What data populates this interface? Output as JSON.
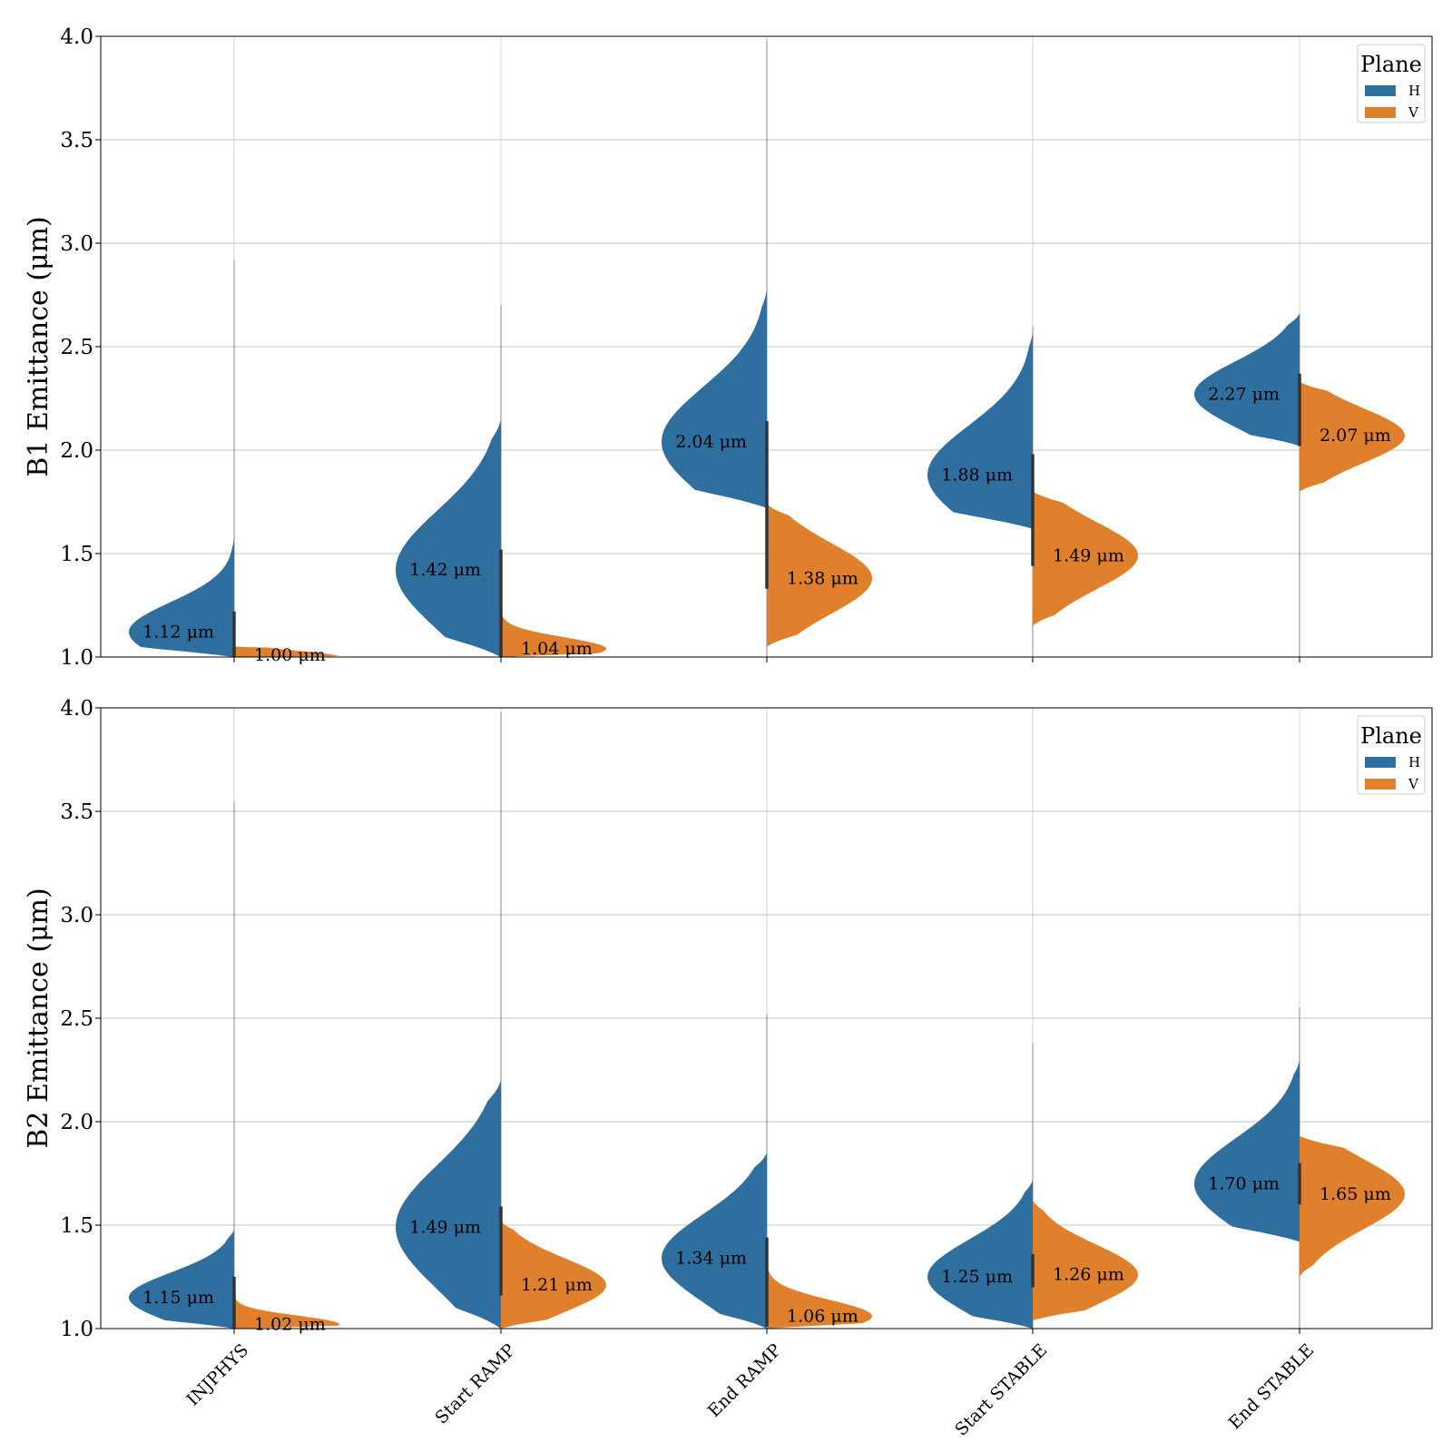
{
  "chart_data": [
    {
      "type": "violin",
      "ylabel": "B1 Emittance (μm)",
      "ylim": [
        1.0,
        4.0
      ],
      "yticks": [
        "1.0",
        "1.5",
        "2.0",
        "2.5",
        "3.0",
        "3.5",
        "4.0"
      ],
      "grid": true,
      "legend": {
        "title": "Plane",
        "placement": "top-right",
        "entries": [
          "H",
          "V"
        ]
      },
      "categories": [
        "INJPHYS",
        "Start RAMP",
        "End RAMP",
        "Start STABLE",
        "End STABLE"
      ],
      "series": [
        {
          "name": "H",
          "color": "#2f6f9f",
          "medians": [
            1.12,
            1.42,
            2.04,
            1.88,
            2.27
          ],
          "labels": [
            "1.12 μm",
            "1.42 μm",
            "2.04 μm",
            "1.88 μm",
            "2.27 μm"
          ],
          "ranges": [
            [
              1.0,
              1.58
            ],
            [
              1.0,
              2.15
            ],
            [
              1.72,
              2.78
            ],
            [
              1.62,
              2.58
            ],
            [
              2.02,
              2.66
            ]
          ]
        },
        {
          "name": "V",
          "color": "#e07f2c",
          "medians": [
            1.0,
            1.04,
            1.38,
            1.49,
            2.07
          ],
          "labels": [
            "1.00 μm",
            "1.04 μm",
            "1.38 μm",
            "1.49 μm",
            "2.07 μm"
          ],
          "ranges": [
            [
              1.0,
              1.05
            ],
            [
              1.0,
              1.22
            ],
            [
              1.05,
              1.74
            ],
            [
              1.15,
              1.8
            ],
            [
              1.8,
              2.33
            ]
          ]
        }
      ],
      "outlier_max": [
        2.92,
        2.7,
        3.98,
        2.6,
        2.66
      ]
    },
    {
      "type": "violin",
      "ylabel": "B2 Emittance (μm)",
      "ylim": [
        1.0,
        4.0
      ],
      "yticks": [
        "1.0",
        "1.5",
        "2.0",
        "2.5",
        "3.0",
        "3.5",
        "4.0"
      ],
      "grid": true,
      "legend": {
        "title": "Plane",
        "placement": "top-right",
        "entries": [
          "H",
          "V"
        ]
      },
      "categories": [
        "INJPHYS",
        "Start RAMP",
        "End RAMP",
        "Start STABLE",
        "End STABLE"
      ],
      "series": [
        {
          "name": "H",
          "color": "#2f6f9f",
          "medians": [
            1.15,
            1.49,
            1.34,
            1.25,
            1.7
          ],
          "labels": [
            "1.15 μm",
            "1.49 μm",
            "1.34 μm",
            "1.25 μm",
            "1.70 μm"
          ],
          "ranges": [
            [
              1.0,
              1.48
            ],
            [
              1.0,
              2.2
            ],
            [
              1.0,
              1.85
            ],
            [
              1.0,
              1.72
            ],
            [
              1.42,
              2.3
            ]
          ]
        },
        {
          "name": "V",
          "color": "#e07f2c",
          "medians": [
            1.02,
            1.21,
            1.06,
            1.26,
            1.65
          ],
          "labels": [
            "1.02 μm",
            "1.21 μm",
            "1.06 μm",
            "1.26 μm",
            "1.65 μm"
          ],
          "ranges": [
            [
              1.0,
              1.17
            ],
            [
              1.0,
              1.52
            ],
            [
              1.0,
              1.31
            ],
            [
              1.04,
              1.62
            ],
            [
              1.25,
              1.93
            ]
          ]
        }
      ],
      "outlier_max": [
        3.55,
        3.98,
        2.52,
        2.38,
        2.55
      ]
    }
  ]
}
